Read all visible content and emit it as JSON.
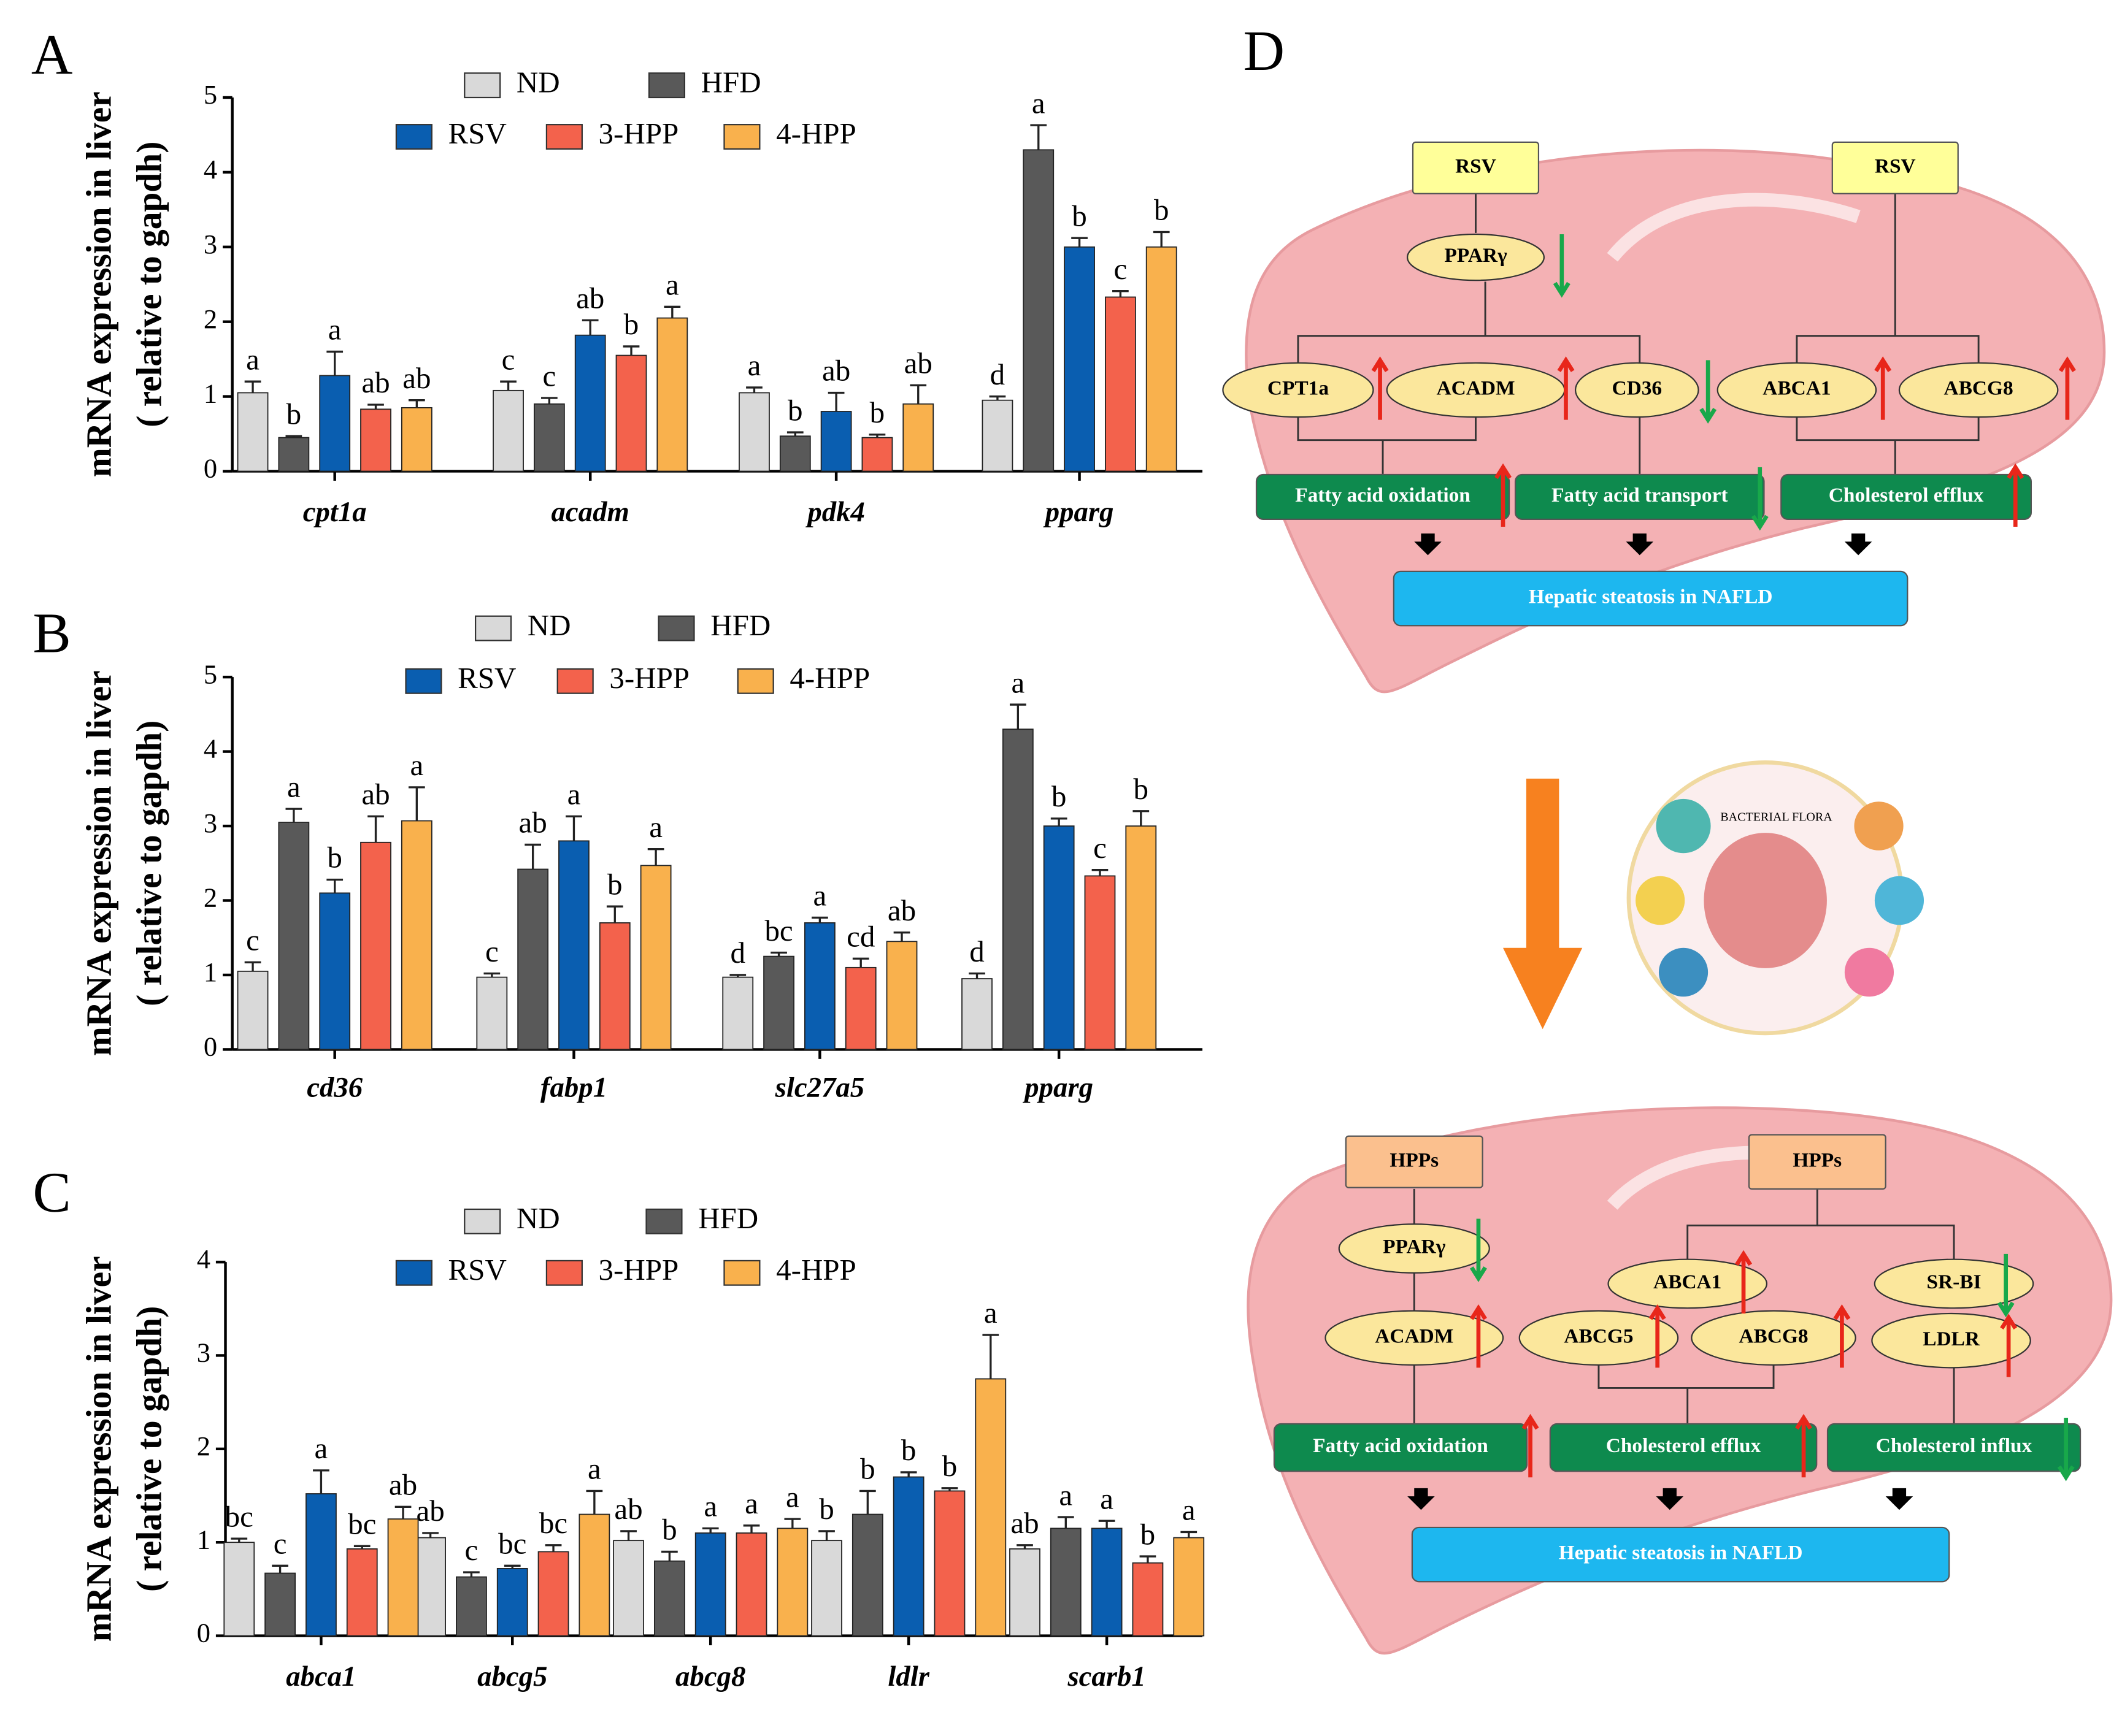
{
  "chart_data": [
    {
      "type": "bar",
      "panel_label": "A",
      "y_label": "mRNA expression in liver",
      "y_label2": "( relative to gapdh)",
      "categories": [
        "cpt1a",
        "acadm",
        "pdk4",
        "pparg"
      ],
      "ylim": [
        0,
        5
      ],
      "yticks": [
        0,
        1,
        2,
        3,
        4,
        5
      ],
      "series": [
        {
          "name": "ND",
          "color": "#d9d9d9",
          "values": [
            1.05,
            1.08,
            1.05,
            0.95
          ],
          "errors": [
            0.15,
            0.12,
            0.07,
            0.05
          ],
          "letters": [
            "a",
            "c",
            "a",
            "d"
          ]
        },
        {
          "name": "HFD",
          "color": "#595959",
          "values": [
            0.45,
            0.9,
            0.47,
            4.3
          ],
          "errors": [
            0.02,
            0.08,
            0.05,
            0.33
          ],
          "letters": [
            "b",
            "c",
            "b",
            "a"
          ]
        },
        {
          "name": "RSV",
          "color": "#0a5eb0",
          "values": [
            1.28,
            1.82,
            0.8,
            3.0
          ],
          "errors": [
            0.32,
            0.2,
            0.25,
            0.12
          ],
          "letters": [
            "a",
            "ab",
            "ab",
            "b"
          ]
        },
        {
          "name": "3-HPP",
          "color": "#f3624c",
          "values": [
            0.83,
            1.55,
            0.45,
            2.33
          ],
          "errors": [
            0.06,
            0.12,
            0.04,
            0.08
          ],
          "letters": [
            "ab",
            "b",
            "b",
            "c"
          ]
        },
        {
          "name": "4-HPP",
          "color": "#f9b14d",
          "values": [
            0.85,
            2.05,
            0.9,
            3.0
          ],
          "errors": [
            0.1,
            0.15,
            0.25,
            0.2
          ],
          "letters": [
            "ab",
            "a",
            "ab",
            "b"
          ]
        }
      ]
    },
    {
      "type": "bar",
      "panel_label": "B",
      "y_label": "mRNA expression in liver",
      "y_label2": "( relative to gapdh)",
      "categories": [
        "cd36",
        "fabp1",
        "slc27a5",
        "pparg"
      ],
      "ylim": [
        0,
        5
      ],
      "yticks": [
        0,
        1,
        2,
        3,
        4,
        5
      ],
      "series": [
        {
          "name": "ND",
          "color": "#d9d9d9",
          "values": [
            1.05,
            0.97,
            0.97,
            0.95
          ],
          "errors": [
            0.12,
            0.05,
            0.03,
            0.07
          ],
          "letters": [
            "c",
            "c",
            "d",
            "d"
          ]
        },
        {
          "name": "HFD",
          "color": "#595959",
          "values": [
            3.05,
            2.42,
            1.25,
            4.3
          ],
          "errors": [
            0.18,
            0.33,
            0.05,
            0.33
          ],
          "letters": [
            "a",
            "ab",
            "bc",
            "a"
          ]
        },
        {
          "name": "RSV",
          "color": "#0a5eb0",
          "values": [
            2.1,
            2.8,
            1.7,
            3.0
          ],
          "errors": [
            0.18,
            0.33,
            0.07,
            0.1
          ],
          "letters": [
            "b",
            "a",
            "a",
            "b"
          ]
        },
        {
          "name": "3-HPP",
          "color": "#f3624c",
          "values": [
            2.78,
            1.7,
            1.1,
            2.33
          ],
          "errors": [
            0.35,
            0.22,
            0.12,
            0.08
          ],
          "letters": [
            "ab",
            "b",
            "cd",
            "c"
          ]
        },
        {
          "name": "4-HPP",
          "color": "#f9b14d",
          "values": [
            3.07,
            2.47,
            1.45,
            3.0
          ],
          "errors": [
            0.45,
            0.22,
            0.12,
            0.2
          ],
          "letters": [
            "a",
            "a",
            "ab",
            "b"
          ]
        }
      ]
    },
    {
      "type": "bar",
      "panel_label": "C",
      "y_label": "mRNA expression in liver",
      "y_label2": "( relative to gapdh)",
      "categories": [
        "abca1",
        "abcg5",
        "abcg8",
        "ldlr",
        "scarb1"
      ],
      "ylim": [
        0,
        4
      ],
      "yticks": [
        0,
        1,
        2,
        3,
        4
      ],
      "series": [
        {
          "name": "ND",
          "color": "#d9d9d9",
          "values": [
            1.0,
            1.05,
            1.02,
            1.02,
            0.93
          ],
          "errors": [
            0.04,
            0.05,
            0.1,
            0.1,
            0.04
          ],
          "letters": [
            "bc",
            "ab",
            "ab",
            "b",
            "ab"
          ]
        },
        {
          "name": "HFD",
          "color": "#595959",
          "values": [
            0.67,
            0.63,
            0.8,
            1.3,
            1.15
          ],
          "errors": [
            0.08,
            0.05,
            0.1,
            0.25,
            0.12
          ],
          "letters": [
            "c",
            "c",
            "b",
            "b",
            "a"
          ]
        },
        {
          "name": "RSV",
          "color": "#0a5eb0",
          "values": [
            1.52,
            0.72,
            1.1,
            1.7,
            1.15
          ],
          "errors": [
            0.25,
            0.03,
            0.05,
            0.05,
            0.08
          ],
          "letters": [
            "a",
            "bc",
            "a",
            "b",
            "a"
          ]
        },
        {
          "name": "3-HPP",
          "color": "#f3624c",
          "values": [
            0.93,
            0.9,
            1.1,
            1.55,
            0.78
          ],
          "errors": [
            0.03,
            0.07,
            0.08,
            0.03,
            0.07
          ],
          "letters": [
            "bc",
            "bc",
            "a",
            "b",
            "b"
          ]
        },
        {
          "name": "4-HPP",
          "color": "#f9b14d",
          "values": [
            1.25,
            1.3,
            1.15,
            2.75,
            1.05
          ],
          "errors": [
            0.13,
            0.25,
            0.1,
            0.47,
            0.06
          ],
          "letters": [
            "ab",
            "a",
            "a",
            "a",
            "a"
          ]
        }
      ]
    }
  ],
  "diagram": {
    "panel_label": "D",
    "nodes": [
      "RSV",
      "RSV",
      "PPARγ",
      "CPT1a",
      "ACADM",
      "CD36",
      "ABCA1",
      "ABCG8",
      "Fatty acid oxidation",
      "Fatty acid transport",
      "Cholesterol efflux",
      "Hepatic steatosis in NAFLD",
      "BACTERIAL FLORA",
      "HPPs",
      "HPPs",
      "PPARγ",
      "ACADM",
      "ABCA1",
      "ABCG5",
      "ABCG8",
      "SR-BI",
      "LDLR",
      "Fatty acid oxidation",
      "Cholesterol efflux",
      "Cholesterol influx",
      "Hepatic steatosis in NAFLD"
    ]
  }
}
